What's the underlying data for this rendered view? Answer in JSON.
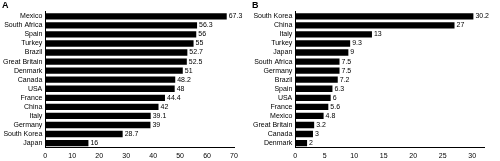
{
  "chart_data": [
    {
      "type": "bar",
      "title": "A",
      "orientation": "horizontal",
      "categories": [
        "Mexico",
        "South Africa",
        "Spain",
        "Turkey",
        "Brazil",
        "Great Britain",
        "Denmark",
        "Canada",
        "USA",
        "France",
        "China",
        "Italy",
        "Germany",
        "South Korea",
        "Japan"
      ],
      "values": [
        67.3,
        56.3,
        56,
        55,
        52.7,
        52.5,
        51,
        48.2,
        48,
        44.4,
        42,
        39.1,
        39,
        28.7,
        16
      ],
      "color": "#000000",
      "xlim": [
        0,
        70
      ],
      "xticks": [
        0,
        10,
        20,
        30,
        40,
        50,
        60,
        70
      ],
      "grid": false,
      "data_labels": true
    },
    {
      "type": "bar",
      "title": "B",
      "orientation": "horizontal",
      "categories": [
        "South Korea",
        "China",
        "Italy",
        "Turkey",
        "Japan",
        "South Africa",
        "Germany",
        "Brazil",
        "Spain",
        "USA",
        "France",
        "Mexico",
        "Great Britain",
        "Canada",
        "Denmark"
      ],
      "values": [
        30.2,
        27,
        13,
        9.3,
        9,
        7.5,
        7.5,
        7.2,
        6.3,
        6,
        5.6,
        4.8,
        3.2,
        3,
        2
      ],
      "color": "#000000",
      "xlim": [
        0,
        32
      ],
      "xticks": [
        0,
        5,
        10,
        15,
        20,
        25,
        30
      ],
      "grid": false,
      "data_labels": true
    }
  ]
}
